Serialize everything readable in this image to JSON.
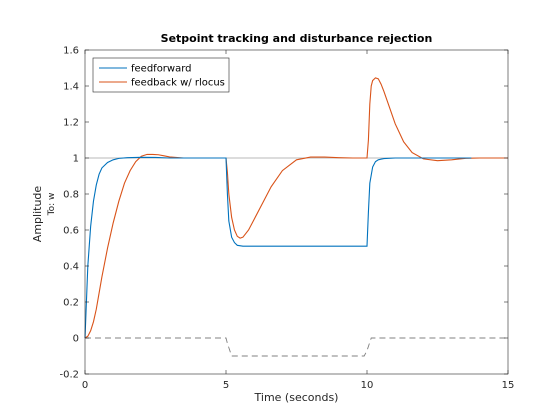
{
  "chart_data": {
    "type": "line",
    "title": "Setpoint tracking and disturbance rejection",
    "xlabel": "Time (seconds)",
    "ylabel": "Amplitude",
    "ysublabel": "To: w",
    "xlim": [
      0,
      15
    ],
    "ylim": [
      -0.2,
      1.6
    ],
    "xticks": [
      "0",
      "5",
      "10",
      "15"
    ],
    "yticks": [
      "-0.2",
      "0",
      "0.2",
      "0.4",
      "0.6",
      "0.8",
      "1",
      "1.2",
      "1.4",
      "1.6"
    ],
    "legend_position": "top-left",
    "reference_line": {
      "y": 1,
      "color": "#a0a0a0"
    },
    "series": [
      {
        "name": "feedforward",
        "color": "#0072BD",
        "x": [
          0,
          0.1,
          0.2,
          0.3,
          0.4,
          0.5,
          0.6,
          0.8,
          1.0,
          1.2,
          1.5,
          2.0,
          2.5,
          3.0,
          3.6,
          5.0,
          5.05,
          5.1,
          5.2,
          5.3,
          5.4,
          5.6,
          6.0,
          8.0,
          10.0,
          10.05,
          10.1,
          10.2,
          10.3,
          10.4,
          10.6,
          11.0,
          12.0,
          13.7
        ],
        "y": [
          0,
          0.4,
          0.62,
          0.76,
          0.85,
          0.91,
          0.945,
          0.975,
          0.99,
          0.998,
          1.002,
          1.004,
          1.003,
          1.0,
          1.0,
          1.0,
          0.8,
          0.65,
          0.56,
          0.53,
          0.515,
          0.51,
          0.51,
          0.51,
          0.51,
          0.7,
          0.86,
          0.95,
          0.98,
          0.99,
          0.997,
          1.0,
          1.0,
          1.0
        ]
      },
      {
        "name": "feedback w/ rlocus",
        "color": "#D95319",
        "x": [
          0,
          0.1,
          0.2,
          0.3,
          0.4,
          0.5,
          0.6,
          0.8,
          1.0,
          1.2,
          1.4,
          1.6,
          1.8,
          2.0,
          2.2,
          2.4,
          2.6,
          2.8,
          3.0,
          3.5,
          4.0,
          4.5,
          5.0,
          5.05,
          5.1,
          5.2,
          5.3,
          5.4,
          5.5,
          5.6,
          5.8,
          6.0,
          6.3,
          6.6,
          7.0,
          7.5,
          8.0,
          8.5,
          9.0,
          9.5,
          10.0,
          10.05,
          10.1,
          10.15,
          10.2,
          10.3,
          10.4,
          10.5,
          10.6,
          10.8,
          11.0,
          11.3,
          11.6,
          12.0,
          12.5,
          13.0,
          13.5,
          14.0,
          15.0
        ],
        "y": [
          0,
          0.01,
          0.04,
          0.09,
          0.16,
          0.25,
          0.34,
          0.5,
          0.64,
          0.76,
          0.86,
          0.93,
          0.98,
          1.01,
          1.02,
          1.02,
          1.018,
          1.012,
          1.006,
          1.0,
          1.0,
          1.0,
          1.0,
          0.92,
          0.8,
          0.67,
          0.6,
          0.565,
          0.555,
          0.56,
          0.6,
          0.66,
          0.75,
          0.84,
          0.93,
          0.99,
          1.005,
          1.005,
          1.002,
          1.0,
          1.0,
          1.1,
          1.3,
          1.4,
          1.43,
          1.445,
          1.44,
          1.41,
          1.37,
          1.28,
          1.19,
          1.09,
          1.03,
          0.995,
          0.985,
          0.99,
          0.998,
          1.0,
          1.0
        ]
      },
      {
        "name": "",
        "color": "#808080",
        "dash": true,
        "x": [
          0,
          5.0,
          5.05,
          5.2,
          9.9,
          10.0,
          10.15,
          15
        ],
        "y": [
          0,
          0,
          -0.03,
          -0.1,
          -0.1,
          -0.07,
          0,
          0
        ]
      }
    ]
  }
}
